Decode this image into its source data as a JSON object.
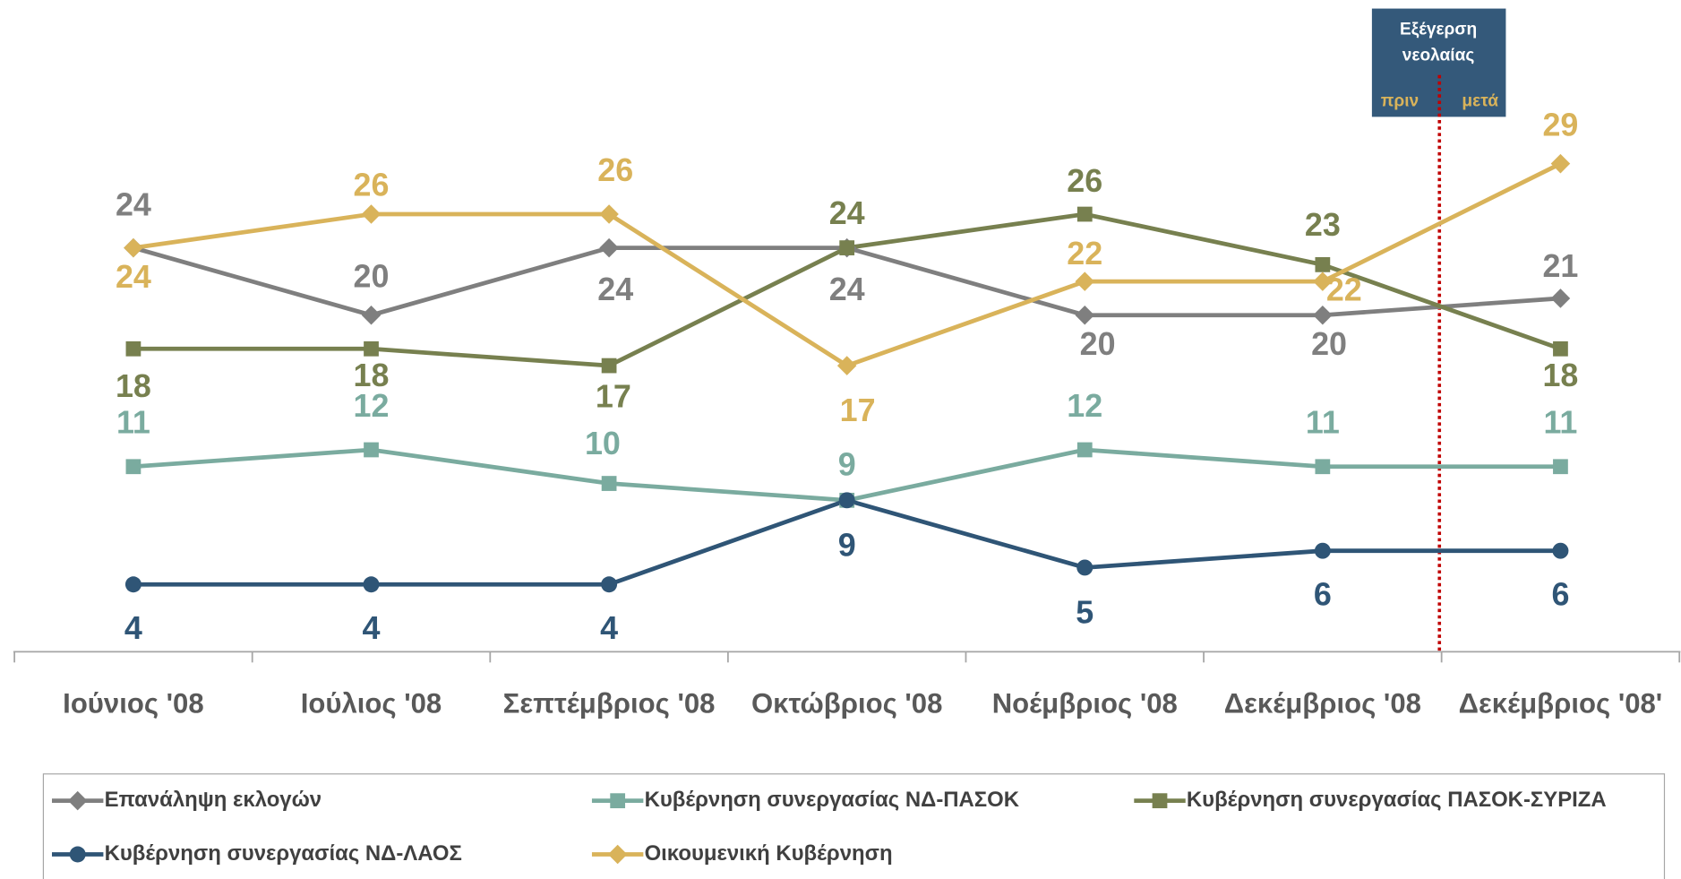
{
  "chart_data": {
    "type": "line",
    "categories": [
      "Ιούνιος '08",
      "Ιούλιος '08",
      "Σεπτέμβριος '08",
      "Οκτώβριος '08",
      "Νοέμβριος '08",
      "Δεκέμβριος '08",
      "Δεκέμβριος '08'"
    ],
    "ylim": [
      0,
      30
    ],
    "series": [
      {
        "name": "Επανάληψη εκλογών",
        "color": "#7f7f7f",
        "marker": "diamond",
        "values": [
          24,
          20,
          24,
          24,
          20,
          20,
          21
        ]
      },
      {
        "name": "Κυβέρνηση συνεργασίας ΝΔ-ΠΑΣΟΚ",
        "color": "#7aab9f",
        "marker": "square",
        "values": [
          11,
          12,
          10,
          9,
          12,
          11,
          11
        ]
      },
      {
        "name": "Κυβέρνηση συνεργασίας ΠΑΣΟΚ-ΣΥΡΙΖΑ",
        "color": "#77804f",
        "marker": "square",
        "values": [
          18,
          18,
          17,
          24,
          26,
          23,
          18
        ]
      },
      {
        "name": "Κυβέρνηση συνεργασίας ΝΔ-ΛΑΟΣ",
        "color": "#2f5576",
        "marker": "circle",
        "values": [
          4,
          4,
          4,
          9,
          5,
          6,
          6
        ]
      },
      {
        "name": "Οικουμενική Κυβέρνηση",
        "color": "#d9b35a",
        "marker": "diamond",
        "values": [
          24,
          26,
          26,
          17,
          22,
          22,
          29
        ]
      }
    ],
    "annotation": {
      "lines": [
        "Εξέγερση",
        "νεολαίας"
      ],
      "before": "πριν",
      "after": "μετά"
    },
    "legend": "bottom"
  }
}
